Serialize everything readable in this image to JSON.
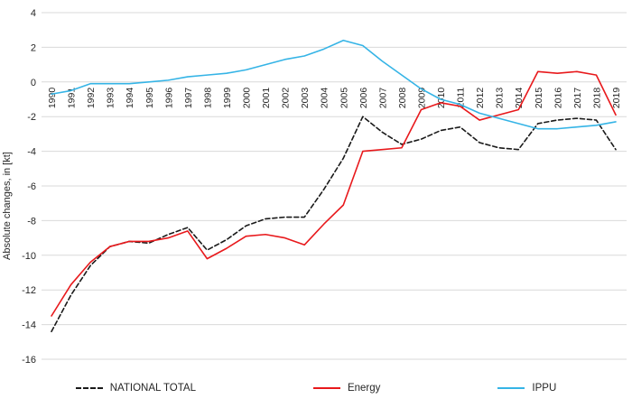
{
  "chart_data": {
    "type": "line",
    "title": "",
    "xlabel": "",
    "ylabel": "Absolute changes, in [kt]",
    "ylim": [
      -16,
      4
    ],
    "yticks": [
      4,
      2,
      0,
      -2,
      -4,
      -6,
      -8,
      -10,
      -12,
      -14,
      -16
    ],
    "grid": true,
    "legend_position": "bottom",
    "x": [
      "1990",
      "1991",
      "1992",
      "1993",
      "1994",
      "1995",
      "1996",
      "1997",
      "1998",
      "1999",
      "2000",
      "2001",
      "2002",
      "2003",
      "2004",
      "2005",
      "2006",
      "2007",
      "2008",
      "2009",
      "2010",
      "2011",
      "2012",
      "2013",
      "2014",
      "2015",
      "2016",
      "2017",
      "2018",
      "2019"
    ],
    "series": [
      {
        "name": "NATIONAL TOTAL",
        "color": "#1a1a1a",
        "dash": true,
        "values": [
          -14.4,
          -12.3,
          -10.6,
          -9.5,
          -9.2,
          -9.3,
          -8.8,
          -8.4,
          -9.7,
          -9.1,
          -8.3,
          -7.9,
          -7.8,
          -7.8,
          -6.2,
          -4.4,
          -2.0,
          -2.9,
          -3.6,
          -3.3,
          -2.8,
          -2.6,
          -3.5,
          -3.8,
          -3.9,
          -2.4,
          -2.2,
          -2.1,
          -2.2,
          -3.9
        ]
      },
      {
        "name": "Energy",
        "color": "#e8191c",
        "dash": false,
        "values": [
          -13.5,
          -11.7,
          -10.4,
          -9.5,
          -9.2,
          -9.2,
          -9.0,
          -8.6,
          -10.2,
          -9.6,
          -8.9,
          -8.8,
          -9.0,
          -9.4,
          -8.2,
          -7.1,
          -4.0,
          -3.9,
          -3.8,
          -1.6,
          -1.2,
          -1.4,
          -2.2,
          -1.9,
          -1.6,
          0.6,
          0.5,
          0.6,
          0.4,
          -1.9
        ]
      },
      {
        "name": "IPPU",
        "color": "#35b4e6",
        "dash": false,
        "values": [
          -0.7,
          -0.5,
          -0.1,
          -0.1,
          -0.1,
          0.0,
          0.1,
          0.3,
          0.4,
          0.5,
          0.7,
          1.0,
          1.3,
          1.5,
          1.9,
          2.4,
          2.1,
          1.2,
          0.4,
          -0.4,
          -1.0,
          -1.3,
          -1.8,
          -2.1,
          -2.4,
          -2.7,
          -2.7,
          -2.6,
          -2.5,
          -2.3
        ]
      }
    ]
  },
  "colors": {
    "grid": "#d9d9d9",
    "axis_text": "#262626",
    "background": "#ffffff"
  }
}
